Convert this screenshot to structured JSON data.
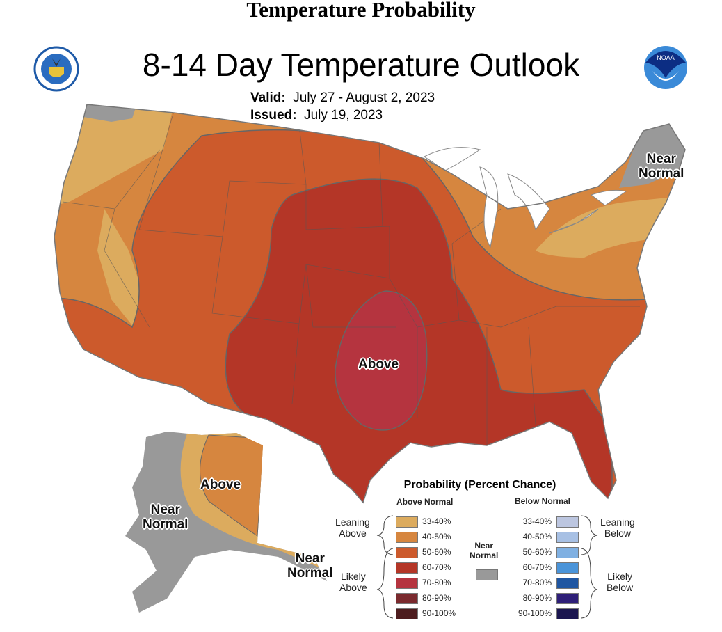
{
  "page_title": "Temperature Probability",
  "map_title": "8-14 Day Temperature Outlook",
  "valid_label": "Valid:",
  "valid_value": "July 27 - August 2, 2023",
  "issued_label": "Issued:",
  "issued_value": "July 19, 2023",
  "logos": {
    "left": "Department of Commerce seal",
    "right": "NOAA"
  },
  "map_labels": {
    "conus_above": "Above",
    "ne_near": "Near",
    "ne_normal": "Normal",
    "ak_above": "Above",
    "ak_near": "Near",
    "ak_normal": "Normal",
    "aleut_near": "Near",
    "aleut_normal": "Normal"
  },
  "legend": {
    "title": "Probability (Percent Chance)",
    "above_header": "Above Normal",
    "below_header": "Below Normal",
    "leaning_above": [
      "Leaning",
      "Above"
    ],
    "likely_above": [
      "Likely",
      "Above"
    ],
    "leaning_below": [
      "Leaning",
      "Below"
    ],
    "likely_below": [
      "Likely",
      "Below"
    ],
    "near_normal": [
      "Near",
      "Normal"
    ],
    "near_color": "#999999",
    "above": [
      {
        "label": "33-40%",
        "color": "#dcab5e"
      },
      {
        "label": "40-50%",
        "color": "#d6863f"
      },
      {
        "label": "50-60%",
        "color": "#cc5a2c"
      },
      {
        "label": "60-70%",
        "color": "#b43627"
      },
      {
        "label": "70-80%",
        "color": "#b5343f"
      },
      {
        "label": "80-90%",
        "color": "#7a2a2e"
      },
      {
        "label": "90-100%",
        "color": "#4d1c1e"
      }
    ],
    "below": [
      {
        "label": "33-40%",
        "color": "#bcc6e0"
      },
      {
        "label": "40-50%",
        "color": "#a7c0e4"
      },
      {
        "label": "50-60%",
        "color": "#7fb0e2"
      },
      {
        "label": "60-70%",
        "color": "#4a94d9"
      },
      {
        "label": "70-80%",
        "color": "#1f56a1"
      },
      {
        "label": "80-90%",
        "color": "#2e1f78"
      },
      {
        "label": "90-100%",
        "color": "#1b1650"
      }
    ]
  }
}
